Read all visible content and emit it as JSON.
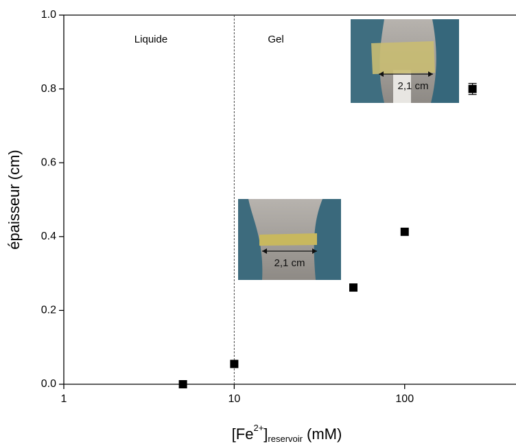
{
  "chart_data": {
    "type": "scatter",
    "x_label": {
      "base": "[Fe",
      "sup": "2+",
      "mid": "]",
      "sub": "reservoir",
      "end": "(mM)"
    },
    "y_label": "épaisseur (cm)",
    "x_scale": "log",
    "xlim": [
      1,
      450
    ],
    "xticks": [
      1,
      10,
      100
    ],
    "ylim": [
      0,
      1
    ],
    "yticks": [
      {
        "value": 0,
        "label": "0.0"
      },
      0.2,
      0.4,
      0.6,
      0.8,
      {
        "value": 1,
        "label": "1.0"
      }
    ],
    "divider_x": 10,
    "annotations": [
      "Liquide",
      "Gel"
    ],
    "insets": [
      {
        "label": "2,1 cm"
      },
      {
        "label": "2,1 cm"
      }
    ],
    "series": [
      {
        "name": "épaisseur",
        "color": "#000000",
        "x": [
          5,
          10,
          50,
          100,
          250
        ],
        "values": [
          0,
          0.055,
          0.262,
          0.413,
          0.8
        ],
        "errors": [
          null,
          null,
          null,
          null,
          0.015
        ]
      }
    ]
  }
}
